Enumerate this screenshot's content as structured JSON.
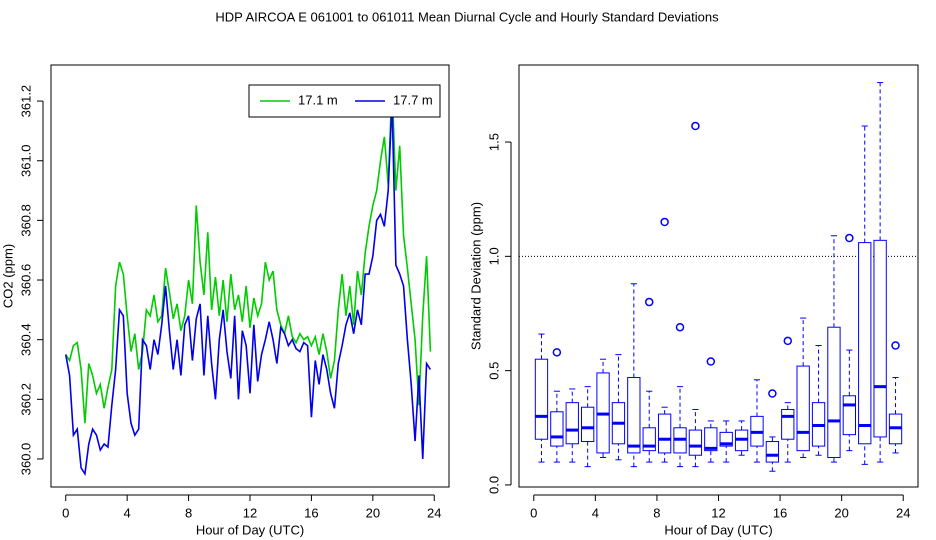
{
  "title": "HDP   AIRCOA E   061001 to 061011   Mean Diurnal Cycle and Hourly Standard Deviations",
  "chart_data": [
    {
      "type": "line",
      "xlabel": "Hour of Day (UTC)",
      "ylabel": "CO2 (ppm)",
      "xlim": [
        -0.96,
        24.96
      ],
      "ylim": [
        359.906,
        361.321
      ],
      "xticks": [
        0,
        4,
        8,
        12,
        16,
        20,
        24
      ],
      "yticks": [
        {
          "value": 360,
          "label": "360.0"
        },
        360.2,
        360.4,
        360.6,
        360.8,
        {
          "value": 361,
          "label": "361.0"
        },
        361.2
      ],
      "legend": "top-right",
      "x": [
        0,
        0.25,
        0.5,
        0.75,
        1,
        1.25,
        1.5,
        1.75,
        2,
        2.25,
        2.5,
        2.75,
        3,
        3.25,
        3.5,
        3.75,
        4,
        4.25,
        4.5,
        4.75,
        5,
        5.25,
        5.5,
        5.75,
        6,
        6.25,
        6.5,
        6.75,
        7,
        7.25,
        7.5,
        7.75,
        8,
        8.25,
        8.5,
        8.75,
        9,
        9.25,
        9.5,
        9.75,
        10,
        10.25,
        10.5,
        10.75,
        11,
        11.25,
        11.5,
        11.75,
        12,
        12.25,
        12.5,
        12.75,
        13,
        13.25,
        13.5,
        13.75,
        14,
        14.25,
        14.5,
        14.75,
        15,
        15.25,
        15.5,
        15.75,
        16,
        16.25,
        16.5,
        16.75,
        17,
        17.25,
        17.5,
        17.75,
        18,
        18.25,
        18.5,
        18.75,
        19,
        19.25,
        19.5,
        19.75,
        20,
        20.25,
        20.5,
        20.75,
        21,
        21.25,
        21.5,
        21.75,
        22,
        22.25,
        22.5,
        22.75,
        23,
        23.25,
        23.5,
        23.75
      ],
      "series": [
        {
          "name": "17.1 m",
          "color": "#00cc00",
          "values": [
            360.35,
            360.33,
            360.38,
            360.39,
            360.3,
            360.12,
            360.32,
            360.28,
            360.22,
            360.25,
            360.17,
            360.24,
            360.3,
            360.58,
            360.66,
            360.62,
            360.48,
            360.36,
            360.42,
            360.3,
            360.36,
            360.5,
            360.48,
            360.55,
            360.46,
            360.48,
            360.64,
            360.56,
            360.47,
            360.52,
            360.43,
            360.48,
            360.6,
            360.52,
            360.85,
            360.66,
            360.55,
            360.76,
            360.5,
            360.61,
            360.48,
            360.6,
            360.46,
            360.62,
            360.5,
            360.55,
            360.46,
            360.58,
            360.44,
            360.54,
            360.48,
            360.52,
            360.66,
            360.6,
            360.63,
            360.5,
            360.45,
            360.42,
            360.48,
            360.41,
            360.39,
            360.42,
            360.4,
            360.41,
            360.38,
            360.41,
            360.35,
            360.42,
            360.36,
            360.27,
            360.33,
            360.5,
            360.62,
            360.48,
            360.58,
            360.45,
            360.63,
            360.55,
            360.69,
            360.78,
            360.85,
            360.9,
            361.0,
            361.08,
            360.92,
            361.25,
            360.9,
            361.05,
            360.75,
            360.64,
            360.52,
            360.4,
            360.18,
            360.48,
            360.68,
            360.36
          ]
        },
        {
          "name": "17.7 m",
          "color": "#0000ee",
          "values": [
            360.35,
            360.28,
            360.08,
            360.1,
            359.97,
            359.95,
            360.05,
            360.1,
            360.08,
            360.03,
            360.05,
            360.04,
            360.18,
            360.3,
            360.5,
            360.48,
            360.22,
            360.12,
            360.08,
            360.1,
            360.4,
            360.38,
            360.3,
            360.4,
            360.35,
            360.45,
            360.58,
            360.43,
            360.3,
            360.4,
            360.28,
            360.45,
            360.48,
            360.33,
            360.47,
            360.52,
            360.28,
            360.48,
            360.32,
            360.2,
            360.4,
            360.5,
            360.36,
            360.27,
            360.48,
            360.2,
            360.43,
            360.38,
            360.22,
            360.45,
            360.26,
            360.35,
            360.4,
            360.46,
            360.4,
            360.32,
            360.44,
            360.42,
            360.38,
            360.4,
            360.37,
            360.36,
            360.39,
            360.38,
            360.14,
            360.33,
            360.25,
            360.35,
            360.3,
            360.22,
            360.17,
            360.32,
            360.38,
            360.45,
            360.49,
            360.42,
            360.5,
            360.45,
            360.62,
            360.62,
            360.68,
            360.8,
            360.82,
            360.78,
            360.9,
            361.2,
            360.65,
            360.62,
            360.58,
            360.4,
            360.25,
            360.06,
            360.28,
            360.0,
            360.32,
            360.3
          ]
        }
      ]
    },
    {
      "type": "boxplot",
      "xlabel": "Hour of Day (UTC)",
      "ylabel": "Standard Deviation (ppm)",
      "xlim": [
        -0.96,
        24.96
      ],
      "ylim": [
        -0.009,
        1.837
      ],
      "xticks": [
        0,
        4,
        8,
        12,
        16,
        20,
        24
      ],
      "yticks": [
        {
          "value": 0,
          "label": "0.0"
        },
        0.5,
        {
          "value": 1,
          "label": "1.0"
        },
        1.5
      ],
      "color": "#0000ff",
      "hline": 1.0,
      "x": [
        0.5,
        1.5,
        2.5,
        3.5,
        4.5,
        5.5,
        6.5,
        7.5,
        8.5,
        9.5,
        10.5,
        11.5,
        12.5,
        13.5,
        14.5,
        15.5,
        16.5,
        17.5,
        18.5,
        19.5,
        20.5,
        21.5,
        22.5,
        23.5
      ],
      "whislo": [
        0.1,
        0.1,
        0.1,
        0.08,
        0.12,
        0.11,
        0.08,
        0.1,
        0.1,
        0.08,
        0.08,
        0.1,
        0.1,
        0.13,
        0.1,
        0.06,
        0.1,
        0.12,
        0.13,
        0.1,
        0.15,
        0.09,
        0.1,
        0.14
      ],
      "q1": [
        0.2,
        0.17,
        0.18,
        0.19,
        0.14,
        0.18,
        0.14,
        0.15,
        0.14,
        0.14,
        0.13,
        0.15,
        0.17,
        0.15,
        0.17,
        0.1,
        0.2,
        0.15,
        0.17,
        0.12,
        0.22,
        0.18,
        0.21,
        0.18
      ],
      "med": [
        0.3,
        0.21,
        0.24,
        0.25,
        0.31,
        0.27,
        0.17,
        0.17,
        0.2,
        0.2,
        0.17,
        0.16,
        0.18,
        0.2,
        0.23,
        0.13,
        0.3,
        0.23,
        0.26,
        0.28,
        0.35,
        0.26,
        0.43,
        0.25
      ],
      "q3": [
        0.55,
        0.32,
        0.36,
        0.34,
        0.49,
        0.36,
        0.47,
        0.25,
        0.31,
        0.25,
        0.24,
        0.25,
        0.23,
        0.24,
        0.3,
        0.19,
        0.33,
        0.52,
        0.36,
        0.69,
        0.39,
        1.06,
        1.07,
        0.31
      ],
      "whishi": [
        0.66,
        0.41,
        0.42,
        0.43,
        0.55,
        0.57,
        0.88,
        0.41,
        0.34,
        0.43,
        0.33,
        0.28,
        0.28,
        0.28,
        0.46,
        0.21,
        0.36,
        0.73,
        0.61,
        1.09,
        0.59,
        1.57,
        1.76,
        0.47
      ],
      "outliers": {
        "x": [
          1.5,
          7.5,
          8.5,
          9.5,
          10.5,
          11.5,
          15.5,
          16.5,
          20.5,
          23.5
        ],
        "values": [
          0.58,
          0.8,
          1.15,
          0.69,
          1.57,
          0.54,
          0.4,
          0.63,
          1.08,
          0.61
        ]
      }
    }
  ]
}
